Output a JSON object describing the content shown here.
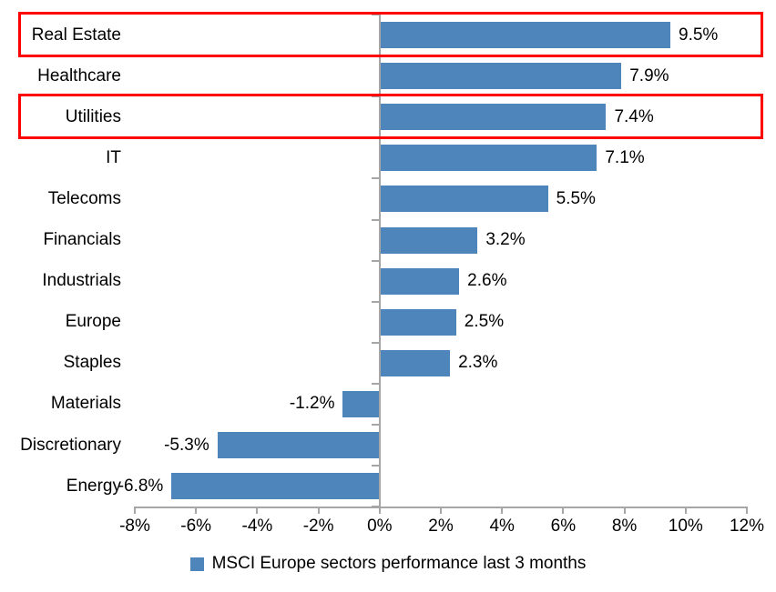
{
  "chart_data": {
    "type": "bar",
    "orientation": "horizontal",
    "title": "",
    "categories": [
      "Real Estate",
      "Healthcare",
      "Utilities",
      "IT",
      "Telecoms",
      "Financials",
      "Industrials",
      "Europe",
      "Staples",
      "Materials",
      "Discretionary",
      "Energy"
    ],
    "values": [
      9.5,
      7.9,
      7.4,
      7.1,
      5.5,
      3.2,
      2.6,
      2.5,
      2.3,
      -1.2,
      -5.3,
      -6.8
    ],
    "value_labels": [
      "9.5%",
      "7.9%",
      "7.4%",
      "7.1%",
      "5.5%",
      "3.2%",
      "2.6%",
      "2.5%",
      "2.3%",
      "-1.2%",
      "-5.3%",
      "-6.8%"
    ],
    "x_tick_labels": [
      "-8%",
      "-6%",
      "-4%",
      "-2%",
      "0%",
      "2%",
      "4%",
      "6%",
      "8%",
      "10%",
      "12%"
    ],
    "x_ticks_pct": [
      -8,
      -6,
      -4,
      -2,
      0,
      2,
      4,
      6,
      8,
      10,
      12
    ],
    "xlim": [
      -8,
      12
    ],
    "grid": false,
    "legend": "MSCI Europe sectors performance last 3 months",
    "legend_position": "bottom",
    "bar_color": "#4E86BB",
    "axis_color": "#A6A6A6",
    "text_color": "#000000",
    "highlight_color": "#FF0000",
    "highlighted_categories": [
      "Real Estate",
      "Utilities"
    ]
  }
}
